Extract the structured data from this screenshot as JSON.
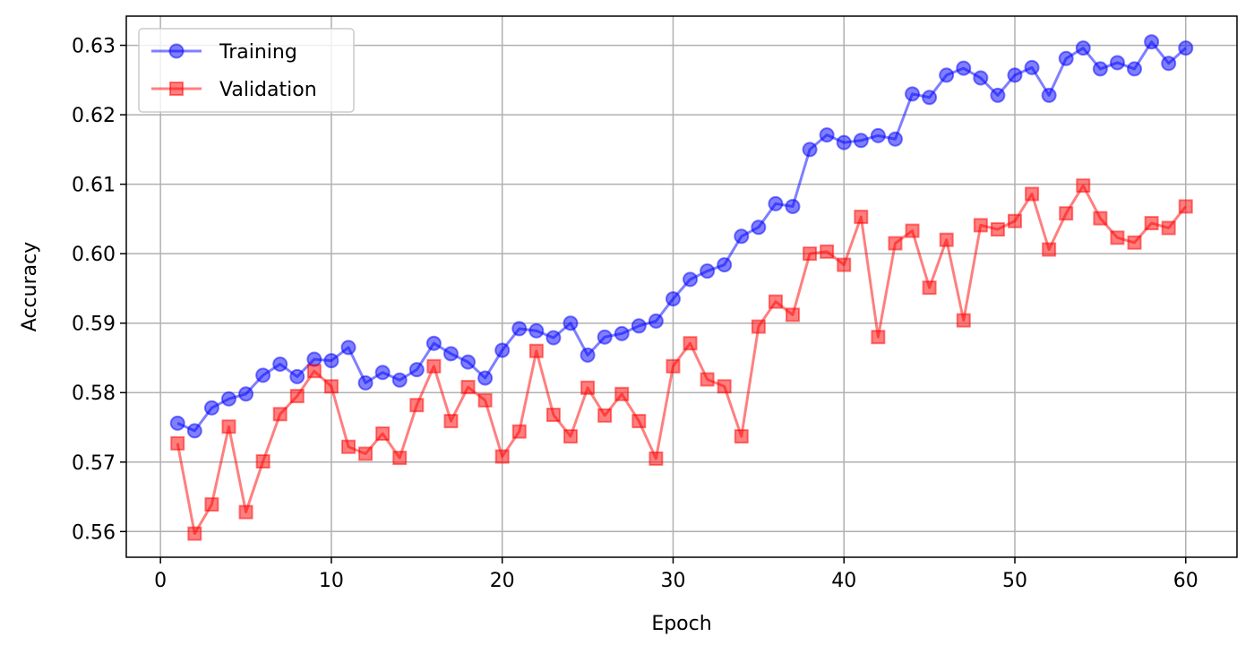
{
  "chart_data": {
    "type": "line",
    "title": "",
    "xlabel": "Epoch",
    "ylabel": "Accuracy",
    "xlim": [
      -2,
      63
    ],
    "ylim": [
      0.5563,
      0.6342
    ],
    "xticks": [
      0,
      10,
      20,
      30,
      40,
      50,
      60
    ],
    "yticks": [
      0.56,
      0.57,
      0.58,
      0.59,
      0.6,
      0.61,
      0.62,
      0.63
    ],
    "ytick_labels": [
      "0.56",
      "0.57",
      "0.58",
      "0.59",
      "0.60",
      "0.61",
      "0.62",
      "0.63"
    ],
    "grid": true,
    "legend_position": "top-left",
    "x": [
      1,
      2,
      3,
      4,
      5,
      6,
      7,
      8,
      9,
      10,
      11,
      12,
      13,
      14,
      15,
      16,
      17,
      18,
      19,
      20,
      21,
      22,
      23,
      24,
      25,
      26,
      27,
      28,
      29,
      30,
      31,
      32,
      33,
      34,
      35,
      36,
      37,
      38,
      39,
      40,
      41,
      42,
      43,
      44,
      45,
      46,
      47,
      48,
      49,
      50,
      51,
      52,
      53,
      54,
      55,
      56,
      57,
      58,
      59,
      60
    ],
    "series": [
      {
        "name": "Training",
        "color": "#0000ff",
        "marker": "circle",
        "values": [
          0.5756,
          0.5745,
          0.5778,
          0.5791,
          0.5798,
          0.5825,
          0.5841,
          0.5823,
          0.5848,
          0.5846,
          0.5865,
          0.5814,
          0.5829,
          0.5818,
          0.5833,
          0.5871,
          0.5856,
          0.5844,
          0.5821,
          0.5861,
          0.5892,
          0.5889,
          0.5879,
          0.59,
          0.5854,
          0.588,
          0.5885,
          0.5896,
          0.5903,
          0.5935,
          0.5963,
          0.5975,
          0.5984,
          0.6025,
          0.6038,
          0.6072,
          0.6068,
          0.615,
          0.6171,
          0.616,
          0.6163,
          0.617,
          0.6165,
          0.623,
          0.6225,
          0.6257,
          0.6267,
          0.6253,
          0.6228,
          0.6257,
          0.6268,
          0.6228,
          0.6281,
          0.6296,
          0.6266,
          0.6275,
          0.6266,
          0.6305,
          0.6274,
          0.6296
        ]
      },
      {
        "name": "Validation",
        "color": "#ff0000",
        "marker": "square",
        "values": [
          0.5727,
          0.5597,
          0.5639,
          0.5751,
          0.5628,
          0.5701,
          0.5769,
          0.5795,
          0.5831,
          0.5809,
          0.5722,
          0.5712,
          0.5741,
          0.5706,
          0.5782,
          0.5838,
          0.5759,
          0.5808,
          0.5789,
          0.5708,
          0.5744,
          0.586,
          0.5768,
          0.5737,
          0.5807,
          0.5767,
          0.5798,
          0.5759,
          0.5705,
          0.5838,
          0.5871,
          0.5819,
          0.5809,
          0.5737,
          0.5895,
          0.5931,
          0.5912,
          0.6,
          0.6003,
          0.5984,
          0.6053,
          0.588,
          0.6015,
          0.6033,
          0.5951,
          0.602,
          0.5904,
          0.6041,
          0.6035,
          0.6047,
          0.6086,
          0.6006,
          0.6058,
          0.6098,
          0.6051,
          0.6023,
          0.6016,
          0.6044,
          0.6037,
          0.6068
        ]
      }
    ]
  }
}
